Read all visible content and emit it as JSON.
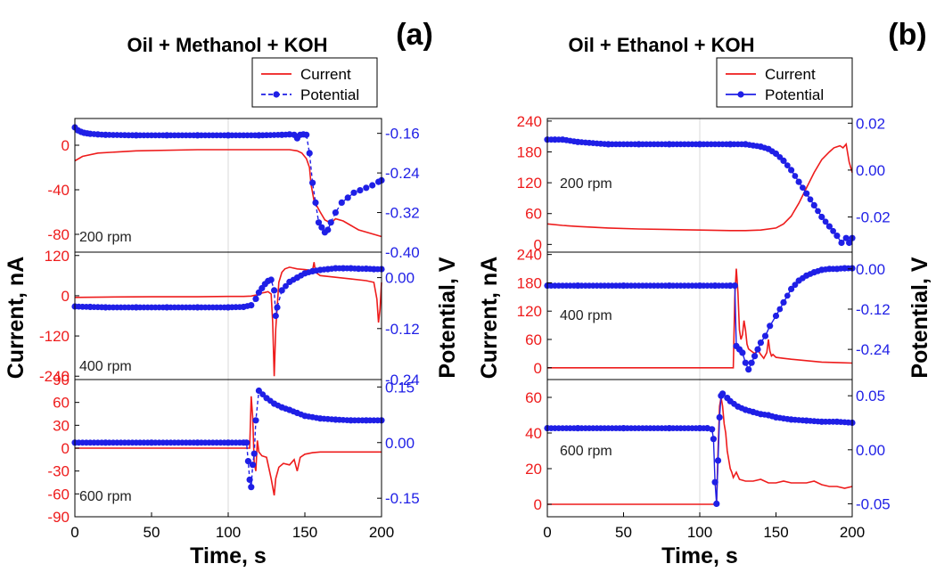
{
  "chart_data": [
    {
      "type": "line",
      "label": "(a)",
      "title": "Oil + Methanol + KOH",
      "xlabel": "Time, s",
      "ylabel_left": "Current, nA",
      "ylabel_right": "Potential, V",
      "xlim": [
        0,
        200
      ],
      "xticks": [
        0,
        50,
        100,
        150,
        200
      ],
      "legend": {
        "position": "top-right",
        "entries": [
          "Current",
          "Potential"
        ]
      },
      "colors": {
        "current": "#ee1c1c",
        "potential": "#1f1fe6"
      },
      "panels": [
        {
          "annotation": "200 rpm",
          "ylim_left": [
            -96,
            24
          ],
          "yticks_left": [
            0,
            -40,
            -80
          ],
          "ylim_right": [
            -0.4,
            -0.13
          ],
          "yticks_right": [
            "-0.16",
            "-0.24",
            "-0.32",
            "-0.40"
          ],
          "yticks_right_values": [
            -0.16,
            -0.24,
            -0.32,
            -0.4
          ],
          "current": {
            "x": [
              0,
              5,
              15,
              40,
              80,
              120,
              140,
              145,
              148,
              151,
              153,
              154,
              156,
              158,
              160,
              163,
              167,
              170,
              175,
              180,
              185,
              190,
              195,
              200
            ],
            "y": [
              -14,
              -10,
              -7,
              -5,
              -4,
              -4,
              -4,
              -5,
              -7,
              -12,
              -20,
              -35,
              -50,
              -55,
              -60,
              -67,
              -70,
              -66,
              -68,
              -72,
              -76,
              -78,
              -80,
              -82
            ]
          },
          "potential": {
            "x": [
              0,
              2,
              4,
              6,
              8,
              10,
              15,
              20,
              40,
              60,
              80,
              100,
              120,
              135,
              140,
              143,
              145,
              147,
              149,
              151,
              153,
              155,
              157,
              159,
              161,
              163,
              165,
              167,
              170,
              174,
              178,
              182,
              186,
              190,
              194,
              198,
              200
            ],
            "y": [
              -0.148,
              -0.154,
              -0.157,
              -0.159,
              -0.16,
              -0.161,
              -0.162,
              -0.163,
              -0.164,
              -0.164,
              -0.164,
              -0.164,
              -0.164,
              -0.163,
              -0.162,
              -0.163,
              -0.17,
              -0.163,
              -0.162,
              -0.163,
              -0.2,
              -0.26,
              -0.3,
              -0.34,
              -0.35,
              -0.36,
              -0.355,
              -0.34,
              -0.32,
              -0.3,
              -0.29,
              -0.28,
              -0.275,
              -0.27,
              -0.265,
              -0.258,
              -0.255
            ]
          }
        },
        {
          "annotation": "400 rpm",
          "ylim_left": [
            -250,
            130
          ],
          "yticks_left": [
            120,
            0,
            -120,
            -240
          ],
          "ylim_right": [
            -0.24,
            0.06
          ],
          "yticks_right": [
            "0.00",
            "-0.12",
            "-0.24"
          ],
          "yticks_right_values": [
            0.0,
            -0.12,
            -0.24
          ],
          "current": {
            "x": [
              0,
              20,
              50,
              80,
              100,
              110,
              115,
              118,
              120,
              122,
              124,
              126,
              128,
              129,
              130,
              131,
              133,
              135,
              137,
              140,
              145,
              150,
              155,
              156,
              157,
              160,
              170,
              180,
              190,
              195,
              197,
              198,
              199,
              200
            ],
            "y": [
              -5,
              -4,
              -3,
              -3,
              -2,
              -2,
              -1,
              2,
              4,
              8,
              10,
              12,
              5,
              -80,
              -240,
              -100,
              40,
              70,
              80,
              85,
              80,
              78,
              75,
              100,
              70,
              60,
              55,
              50,
              45,
              40,
              -10,
              -80,
              -40,
              40
            ]
          },
          "potential": {
            "x": [
              0,
              10,
              20,
              40,
              60,
              80,
              100,
              110,
              115,
              118,
              120,
              122,
              124,
              126,
              128,
              130,
              131,
              132,
              135,
              140,
              145,
              150,
              155,
              160,
              165,
              170,
              175,
              180,
              185,
              190,
              195,
              200
            ],
            "y": [
              -0.068,
              -0.069,
              -0.07,
              -0.07,
              -0.07,
              -0.07,
              -0.07,
              -0.069,
              -0.065,
              -0.05,
              -0.035,
              -0.025,
              -0.015,
              -0.008,
              -0.005,
              -0.03,
              -0.09,
              -0.07,
              -0.03,
              -0.01,
              0.0,
              0.01,
              0.015,
              0.018,
              0.02,
              0.022,
              0.022,
              0.022,
              0.021,
              0.021,
              0.02,
              0.02
            ]
          }
        },
        {
          "annotation": "600 rpm",
          "ylim_left": [
            -90,
            90
          ],
          "yticks_left": [
            90,
            60,
            30,
            0,
            -30,
            -60,
            -90
          ],
          "ylim_right": [
            -0.2,
            0.17
          ],
          "yticks_right": [
            "0.15",
            "0.00",
            "-0.15"
          ],
          "yticks_right_values": [
            0.15,
            0.0,
            -0.15
          ],
          "current": {
            "x": [
              0,
              50,
              100,
              110,
              113,
              114,
              115,
              116,
              117,
              118,
              119,
              120,
              122,
              125,
              128,
              130,
              131,
              133,
              136,
              140,
              143,
              145,
              147,
              150,
              155,
              160,
              180,
              200
            ],
            "y": [
              0,
              0,
              0,
              0,
              0,
              0,
              68,
              40,
              -20,
              -30,
              10,
              -5,
              -10,
              -12,
              -40,
              -62,
              -40,
              -25,
              -20,
              -22,
              -15,
              -30,
              -12,
              -8,
              -6,
              -5,
              -5,
              -5
            ]
          },
          "potential": {
            "x": [
              0,
              20,
              50,
              80,
              100,
              110,
              112,
              113,
              114,
              115,
              116,
              117,
              118,
              120,
              125,
              130,
              135,
              140,
              145,
              150,
              160,
              170,
              180,
              190,
              200
            ],
            "y": [
              0.0,
              0.0,
              0.0,
              0.0,
              0.0,
              0.0,
              0.0,
              -0.05,
              -0.1,
              -0.12,
              -0.06,
              -0.03,
              0.06,
              0.14,
              0.12,
              0.105,
              0.095,
              0.088,
              0.08,
              0.072,
              0.065,
              0.062,
              0.06,
              0.06,
              0.06
            ]
          }
        }
      ]
    },
    {
      "type": "line",
      "label": "(b)",
      "title": "Oil + Ethanol + KOH",
      "xlabel": "Time, s",
      "ylabel_left": "Current, nA",
      "ylabel_right": "Potential, V",
      "xlim": [
        0,
        200
      ],
      "xticks": [
        0,
        50,
        100,
        150,
        200
      ],
      "legend": {
        "position": "top-right",
        "entries": [
          "Current",
          "Potential"
        ]
      },
      "colors": {
        "current": "#ee1c1c",
        "potential": "#1f1fe6"
      },
      "panels": [
        {
          "annotation": "200 rpm",
          "ylim_left": [
            -15,
            245
          ],
          "yticks_left": [
            240,
            180,
            120,
            60,
            0
          ],
          "ylim_right": [
            -0.035,
            0.022
          ],
          "yticks_right": [
            "0.02",
            "0.00",
            "-0.02"
          ],
          "yticks_right_values": [
            0.02,
            0.0,
            -0.02
          ],
          "current": {
            "x": [
              0,
              10,
              20,
              40,
              60,
              80,
              100,
              120,
              130,
              140,
              150,
              155,
              160,
              165,
              170,
              175,
              180,
              185,
              188,
              190,
              192,
              194,
              196,
              198,
              200
            ],
            "y": [
              40,
              37,
              35,
              32,
              30,
              29,
              28,
              27,
              27,
              28,
              32,
              40,
              55,
              80,
              110,
              140,
              165,
              180,
              188,
              190,
              192,
              188,
              195,
              160,
              140
            ]
          },
          "potential": {
            "x": [
              0,
              5,
              10,
              20,
              40,
              60,
              80,
              100,
              120,
              130,
              140,
              145,
              150,
              155,
              160,
              165,
              170,
              175,
              180,
              185,
              190,
              193,
              196,
              198,
              200
            ],
            "y": [
              0.013,
              0.013,
              0.013,
              0.012,
              0.011,
              0.011,
              0.011,
              0.011,
              0.011,
              0.011,
              0.01,
              0.009,
              0.007,
              0.004,
              0.0,
              -0.005,
              -0.01,
              -0.015,
              -0.02,
              -0.024,
              -0.028,
              -0.031,
              -0.029,
              -0.031,
              -0.029
            ]
          }
        },
        {
          "annotation": "400 rpm",
          "ylim_left": [
            -25,
            245
          ],
          "yticks_left": [
            240,
            180,
            120,
            60,
            0
          ],
          "ylim_right": [
            -0.33,
            0.05
          ],
          "yticks_right": [
            "0.00",
            "-0.12",
            "-0.24"
          ],
          "yticks_right_values": [
            0.0,
            -0.12,
            -0.24
          ],
          "current": {
            "x": [
              0,
              50,
              100,
              120,
              122,
              123,
              124,
              125,
              126,
              127,
              128,
              129,
              130,
              131,
              132,
              134,
              136,
              138,
              140,
              142,
              144,
              145,
              146,
              147,
              148,
              150,
              155,
              160,
              170,
              180,
              190,
              200
            ],
            "y": [
              0,
              0,
              0,
              0,
              0,
              150,
              210,
              160,
              80,
              60,
              70,
              100,
              80,
              50,
              40,
              35,
              30,
              38,
              28,
              20,
              32,
              60,
              35,
              25,
              28,
              22,
              20,
              18,
              15,
              12,
              11,
              10
            ]
          },
          "potential": {
            "x": [
              0,
              20,
              50,
              80,
              100,
              110,
              120,
              123,
              124,
              126,
              128,
              130,
              132,
              134,
              136,
              138,
              140,
              143,
              146,
              150,
              155,
              160,
              165,
              170,
              175,
              180,
              185,
              190,
              195,
              200
            ],
            "y": [
              -0.05,
              -0.05,
              -0.05,
              -0.05,
              -0.05,
              -0.05,
              -0.05,
              -0.05,
              -0.23,
              -0.24,
              -0.25,
              -0.28,
              -0.3,
              -0.28,
              -0.26,
              -0.24,
              -0.22,
              -0.2,
              -0.17,
              -0.14,
              -0.1,
              -0.06,
              -0.035,
              -0.02,
              -0.01,
              -0.003,
              0.0,
              0.0,
              0.002,
              0.002
            ]
          }
        },
        {
          "annotation": "600 rpm",
          "ylim_left": [
            -7,
            70
          ],
          "yticks_left": [
            60,
            40,
            20,
            0
          ],
          "ylim_right": [
            -0.062,
            0.065
          ],
          "yticks_right": [
            "0.05",
            "0.00",
            "-0.05"
          ],
          "yticks_right_values": [
            0.05,
            0.0,
            -0.05
          ],
          "current": {
            "x": [
              0,
              50,
              100,
              110,
              111,
              112,
              113,
              114,
              115,
              116,
              117,
              118,
              119,
              120,
              121,
              122,
              124,
              126,
              130,
              135,
              140,
              145,
              150,
              155,
              160,
              165,
              170,
              175,
              180,
              185,
              190,
              195,
              200
            ],
            "y": [
              0,
              0,
              0,
              0,
              0,
              30,
              55,
              60,
              55,
              45,
              40,
              30,
              25,
              20,
              18,
              15,
              18,
              14,
              13,
              13,
              14,
              12,
              12,
              13,
              12,
              12,
              12,
              13,
              11,
              10,
              10,
              9,
              10
            ]
          },
          "potential": {
            "x": [
              0,
              20,
              50,
              80,
              100,
              105,
              108,
              109,
              110,
              111,
              112,
              113,
              114,
              115,
              118,
              120,
              125,
              130,
              135,
              140,
              145,
              150,
              160,
              170,
              180,
              190,
              200
            ],
            "y": [
              0.02,
              0.02,
              0.02,
              0.02,
              0.02,
              0.02,
              0.019,
              0.01,
              -0.03,
              -0.05,
              -0.01,
              0.03,
              0.05,
              0.052,
              0.048,
              0.045,
              0.04,
              0.037,
              0.035,
              0.033,
              0.032,
              0.03,
              0.028,
              0.027,
              0.026,
              0.026,
              0.025
            ]
          }
        }
      ]
    }
  ]
}
